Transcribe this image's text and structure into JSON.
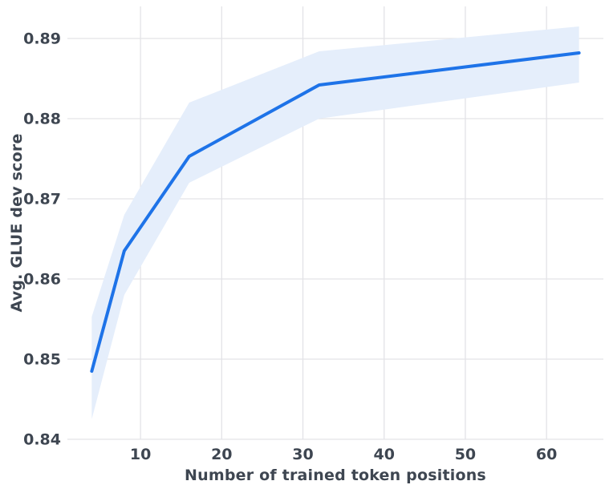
{
  "chart_data": {
    "type": "line",
    "title": "",
    "xlabel": "Number of trained token positions",
    "ylabel": "Avg. GLUE dev score",
    "x": [
      4,
      8,
      16,
      32,
      64
    ],
    "series": [
      {
        "name": "Avg. GLUE dev score",
        "values": [
          0.8485,
          0.8635,
          0.8753,
          0.8842,
          0.8882
        ],
        "band_low": [
          0.8425,
          0.858,
          0.872,
          0.88,
          0.8845
        ],
        "band_high": [
          0.8553,
          0.868,
          0.882,
          0.8884,
          0.8915
        ]
      }
    ],
    "xlim": [
      1,
      67
    ],
    "ylim": [
      0.84,
      0.894
    ],
    "xticks": {
      "values": [
        10,
        20,
        30,
        40,
        50,
        60
      ],
      "labels": [
        "10",
        "20",
        "30",
        "40",
        "50",
        "60"
      ]
    },
    "yticks": {
      "values": [
        0.84,
        0.85,
        0.86,
        0.87,
        0.88,
        0.89
      ],
      "labels": [
        "0.84",
        "0.85",
        "0.86",
        "0.87",
        "0.88",
        "0.89"
      ]
    },
    "grid": true,
    "legend_position": "none",
    "colors": {
      "line": "#1e73e8",
      "band": "#e5eefb",
      "grid": "#e3e3e7",
      "text": "#3e4651",
      "background": "#ffffff"
    }
  }
}
